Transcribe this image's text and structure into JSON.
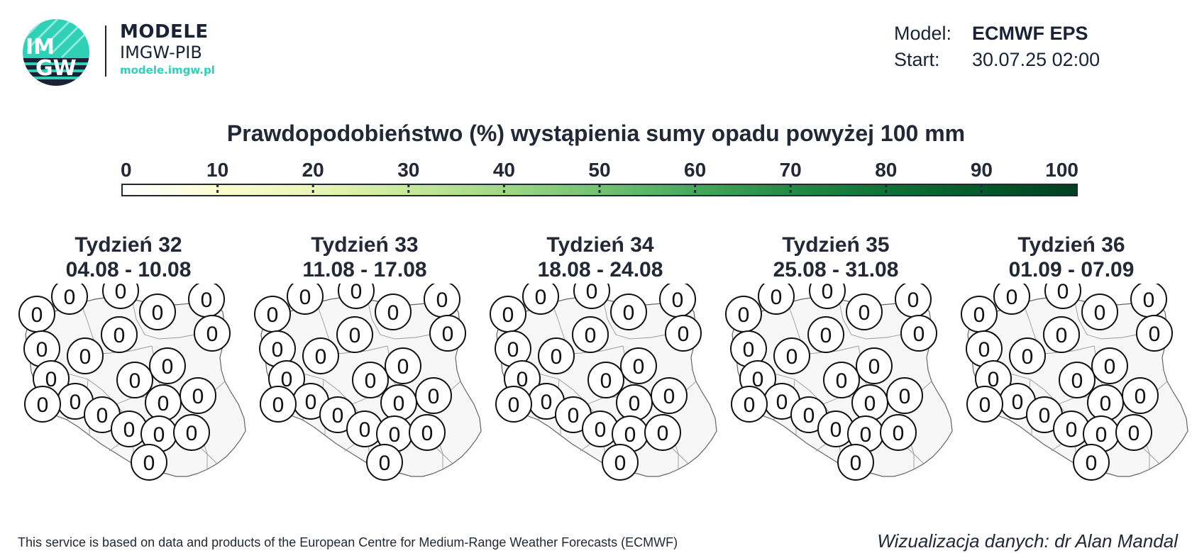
{
  "header": {
    "logo": {
      "mark_text": "IMGW",
      "title": "MODELE",
      "subtitle": "IMGW-PIB",
      "url": "modele.imgw.pl",
      "colors": {
        "teal": "#2fd0b6",
        "navy": "#1a2336"
      }
    },
    "meta": {
      "model_label": "Model:",
      "model_value": "ECMWF EPS",
      "start_label": "Start:",
      "start_value": "30.07.25 02:00"
    }
  },
  "title": "Prawdopodobieństwo (%) wystąpienia sumy opadu powyżej 100 mm",
  "colorbar": {
    "ticks": [
      "0",
      "10",
      "20",
      "30",
      "40",
      "50",
      "60",
      "70",
      "80",
      "90",
      "100"
    ],
    "colors": [
      "#ffffff",
      "#fbfdd0",
      "#eaf6b6",
      "#c7e89c",
      "#9fd786",
      "#73c272",
      "#45a85c",
      "#238b45",
      "#0f7235",
      "#05592b",
      "#00401f"
    ]
  },
  "chart_data": {
    "type": "map",
    "value_unit": "%",
    "weeks": [
      {
        "label": "Tydzień 32",
        "dates": "04.08 - 10.08",
        "values": [
          "0",
          "0",
          "0",
          "0",
          "0",
          "0",
          "0",
          "0",
          "0",
          "0",
          "0",
          "0",
          "0",
          "0",
          "0",
          "0",
          "0",
          "0",
          "0",
          "0",
          "0"
        ]
      },
      {
        "label": "Tydzień 33",
        "dates": "11.08 - 17.08",
        "values": [
          "0",
          "0",
          "0",
          "0",
          "0",
          "0",
          "0",
          "0",
          "0",
          "0",
          "0",
          "0",
          "0",
          "0",
          "0",
          "0",
          "0",
          "0",
          "0",
          "0",
          "0"
        ]
      },
      {
        "label": "Tydzień 34",
        "dates": "18.08 - 24.08",
        "values": [
          "0",
          "0",
          "0",
          "0",
          "0",
          "0",
          "0",
          "0",
          "0",
          "0",
          "0",
          "0",
          "0",
          "0",
          "0",
          "0",
          "0",
          "0",
          "0",
          "0",
          "0"
        ]
      },
      {
        "label": "Tydzień 35",
        "dates": "25.08 - 31.08",
        "values": [
          "0",
          "0",
          "0",
          "0",
          "0",
          "0",
          "0",
          "0",
          "0",
          "0",
          "0",
          "0",
          "0",
          "0",
          "0",
          "0",
          "0",
          "0",
          "0",
          "0",
          "0"
        ]
      },
      {
        "label": "Tydzień 36",
        "dates": "01.09 - 07.09",
        "values": [
          "0",
          "0",
          "0",
          "0",
          "0",
          "0",
          "0",
          "0",
          "0",
          "0",
          "0",
          "0",
          "0",
          "0",
          "0",
          "0",
          "0",
          "0",
          "0",
          "0",
          "0"
        ]
      }
    ]
  },
  "footer": {
    "source": "This service is based on data and products of the European Centre for Medium-Range Weather Forecasts (ECMWF)",
    "credit": "Wizualizacja danych: dr Alan Mandal"
  }
}
